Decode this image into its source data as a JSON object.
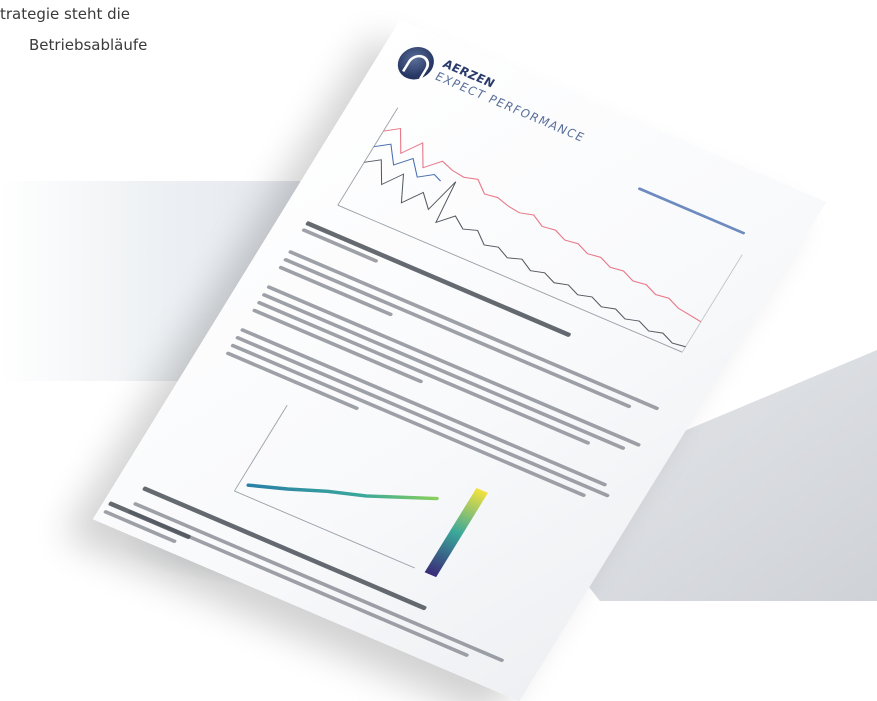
{
  "intro_text": {
    "line1": "trategie steht die",
    "line2": "Betriebsabläufe"
  },
  "document": {
    "brand_name": "AERZEN",
    "brand_tagline": "EXPECT PERFORMANCE"
  },
  "colors": {
    "sheet_shadow": "#d4d7dc",
    "grey_shape": "#dfe2e6",
    "line_pink": "#e87a8a",
    "line_grey": "#555a62",
    "line_blue": "#4a6fb0",
    "gradient_top": "#f4e23c",
    "gradient_mid": "#3aa89a",
    "gradient_bottom": "#3a2a78"
  }
}
